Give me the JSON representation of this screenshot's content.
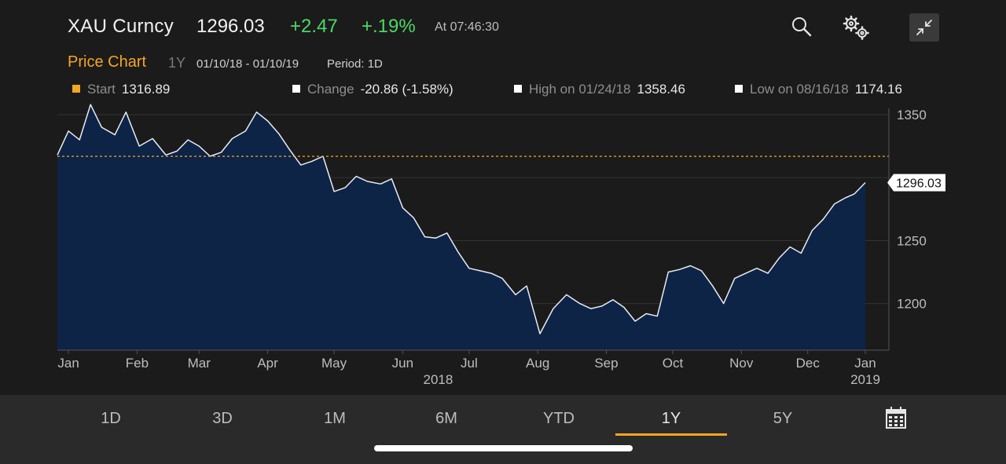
{
  "header": {
    "ticker": "XAU Curncy",
    "price": "1296.03",
    "change": "+2.47",
    "change_pct": "+.19%",
    "time": "At 07:46:30",
    "change_color": "#4cd964"
  },
  "subheader": {
    "title": "Price Chart",
    "range": "1Y",
    "dates": "01/10/18 - 01/10/19",
    "period": "Period: 1D"
  },
  "stats": {
    "start_label": "Start",
    "start_value": "1316.89",
    "change_label": "Change",
    "change_value": "-20.86 (-1.58%)",
    "high_label": "High on 01/24/18",
    "high_value": "1358.46",
    "low_label": "Low on 08/16/18",
    "low_value": "1174.16"
  },
  "tabs": [
    "1D",
    "3D",
    "1M",
    "6M",
    "YTD",
    "1Y",
    "5Y"
  ],
  "active_tab": "1Y",
  "icons": [
    "search-icon",
    "gear-icon",
    "collapse-icon",
    "calendar-icon"
  ],
  "accent_color": "#f5a623",
  "chart_data": {
    "type": "area",
    "title": "",
    "ylim": [
      1163,
      1355
    ],
    "yticks": [
      1200,
      1250,
      1300,
      1350
    ],
    "ytick_labels": [
      "1200",
      "1250",
      "",
      "1350"
    ],
    "reference_line": 1316.89,
    "last_value_label": "1296.03",
    "x_months": [
      "Jan",
      "Feb",
      "Mar",
      "Apr",
      "May",
      "Jun",
      "Jul",
      "Aug",
      "Sep",
      "Oct",
      "Nov",
      "Dec",
      "Jan"
    ],
    "x_years": [
      "2018",
      "2019"
    ],
    "fill_color": "#0d2447",
    "line_color": "#e8ecf2",
    "series": [
      {
        "dates": [
          "2018-01-10",
          "2018-01-15",
          "2018-01-20",
          "2018-01-25",
          "2018-01-30",
          "2018-02-05",
          "2018-02-10",
          "2018-02-16",
          "2018-02-22",
          "2018-02-28",
          "2018-03-05",
          "2018-03-10",
          "2018-03-15",
          "2018-03-20",
          "2018-03-25",
          "2018-03-30",
          "2018-04-05",
          "2018-04-10",
          "2018-04-15",
          "2018-04-20",
          "2018-04-25",
          "2018-04-30",
          "2018-05-05",
          "2018-05-10",
          "2018-05-15",
          "2018-05-20",
          "2018-05-25",
          "2018-05-30",
          "2018-06-05",
          "2018-06-10",
          "2018-06-15",
          "2018-06-20",
          "2018-06-25",
          "2018-06-30",
          "2018-07-05",
          "2018-07-10",
          "2018-07-15",
          "2018-07-20",
          "2018-07-25",
          "2018-07-30",
          "2018-08-05",
          "2018-08-10",
          "2018-08-16",
          "2018-08-22",
          "2018-08-28",
          "2018-09-03",
          "2018-09-08",
          "2018-09-13",
          "2018-09-18",
          "2018-09-23",
          "2018-09-28",
          "2018-10-03",
          "2018-10-08",
          "2018-10-13",
          "2018-10-18",
          "2018-10-23",
          "2018-10-28",
          "2018-11-02",
          "2018-11-07",
          "2018-11-12",
          "2018-11-17",
          "2018-11-22",
          "2018-11-27",
          "2018-12-02",
          "2018-12-07",
          "2018-12-12",
          "2018-12-17",
          "2018-12-22",
          "2018-12-27",
          "2019-01-01",
          "2019-01-05",
          "2019-01-10"
        ],
        "values": [
          1318,
          1337,
          1330,
          1358,
          1340,
          1334,
          1352,
          1325,
          1331,
          1318,
          1321,
          1330,
          1325,
          1317,
          1320,
          1331,
          1337,
          1352,
          1345,
          1335,
          1322,
          1310,
          1313,
          1317,
          1289,
          1292,
          1301,
          1297,
          1295,
          1299,
          1276,
          1268,
          1253,
          1252,
          1256,
          1241,
          1228,
          1226,
          1224,
          1220,
          1207,
          1214,
          1176,
          1196,
          1207,
          1200,
          1196,
          1198,
          1203,
          1197,
          1186,
          1192,
          1190,
          1225,
          1227,
          1230,
          1226,
          1214,
          1200,
          1220,
          1224,
          1228,
          1224,
          1236,
          1245,
          1240,
          1258,
          1267,
          1279,
          1284,
          1287,
          1296
        ]
      }
    ]
  }
}
